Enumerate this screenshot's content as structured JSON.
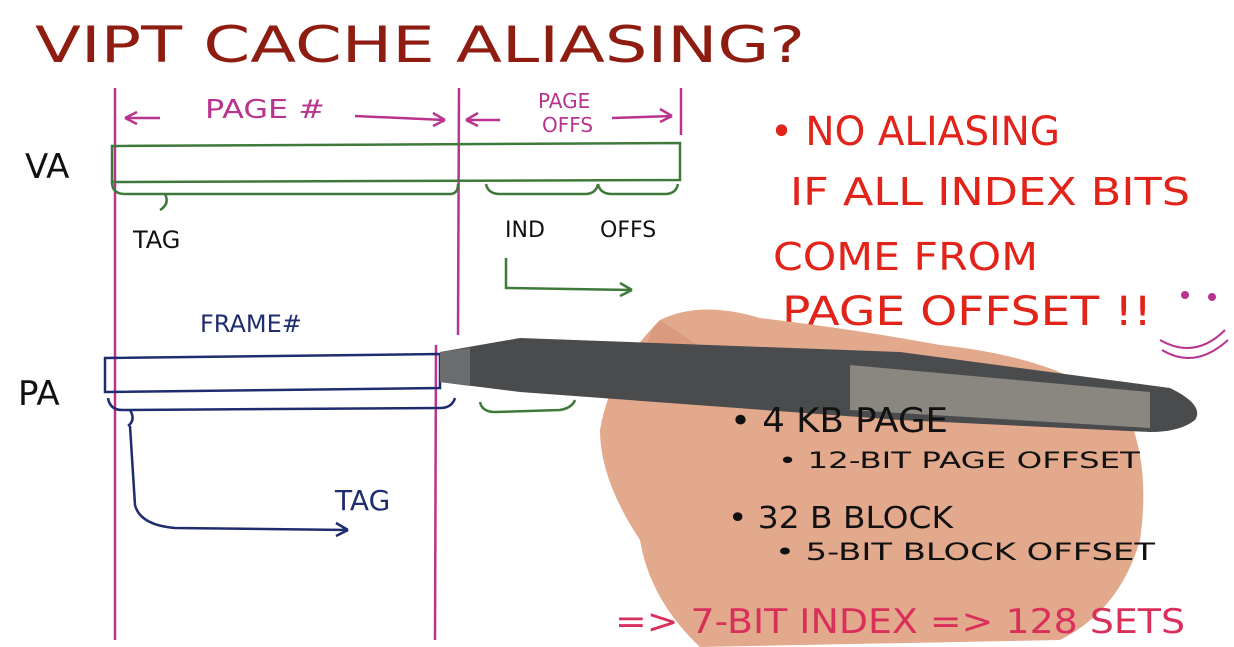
{
  "title": "VIPT CACHE ALIASING?",
  "diagram": {
    "va_label": "VA",
    "pa_label": "PA",
    "page_number": "PAGE #",
    "page_offset": [
      "PAGE",
      "OFFS"
    ],
    "va_tag": "TAG",
    "va_index": "IND",
    "va_offset": "OFFS",
    "frame_number": "FRAME#",
    "pa_tag": "TAG"
  },
  "notes": {
    "red": [
      "• NO ALIASING",
      "IF ALL INDEX BITS",
      "COME FROM",
      "PAGE OFFSET !!"
    ],
    "black": [
      "• 4 KB PAGE",
      "• 12-BIT PAGE OFFSET",
      "• 32 B BLOCK",
      "• 5-BIT BLOCK OFFSET"
    ],
    "conclusion": "=> 7-BIT INDEX => 128 SETS"
  }
}
